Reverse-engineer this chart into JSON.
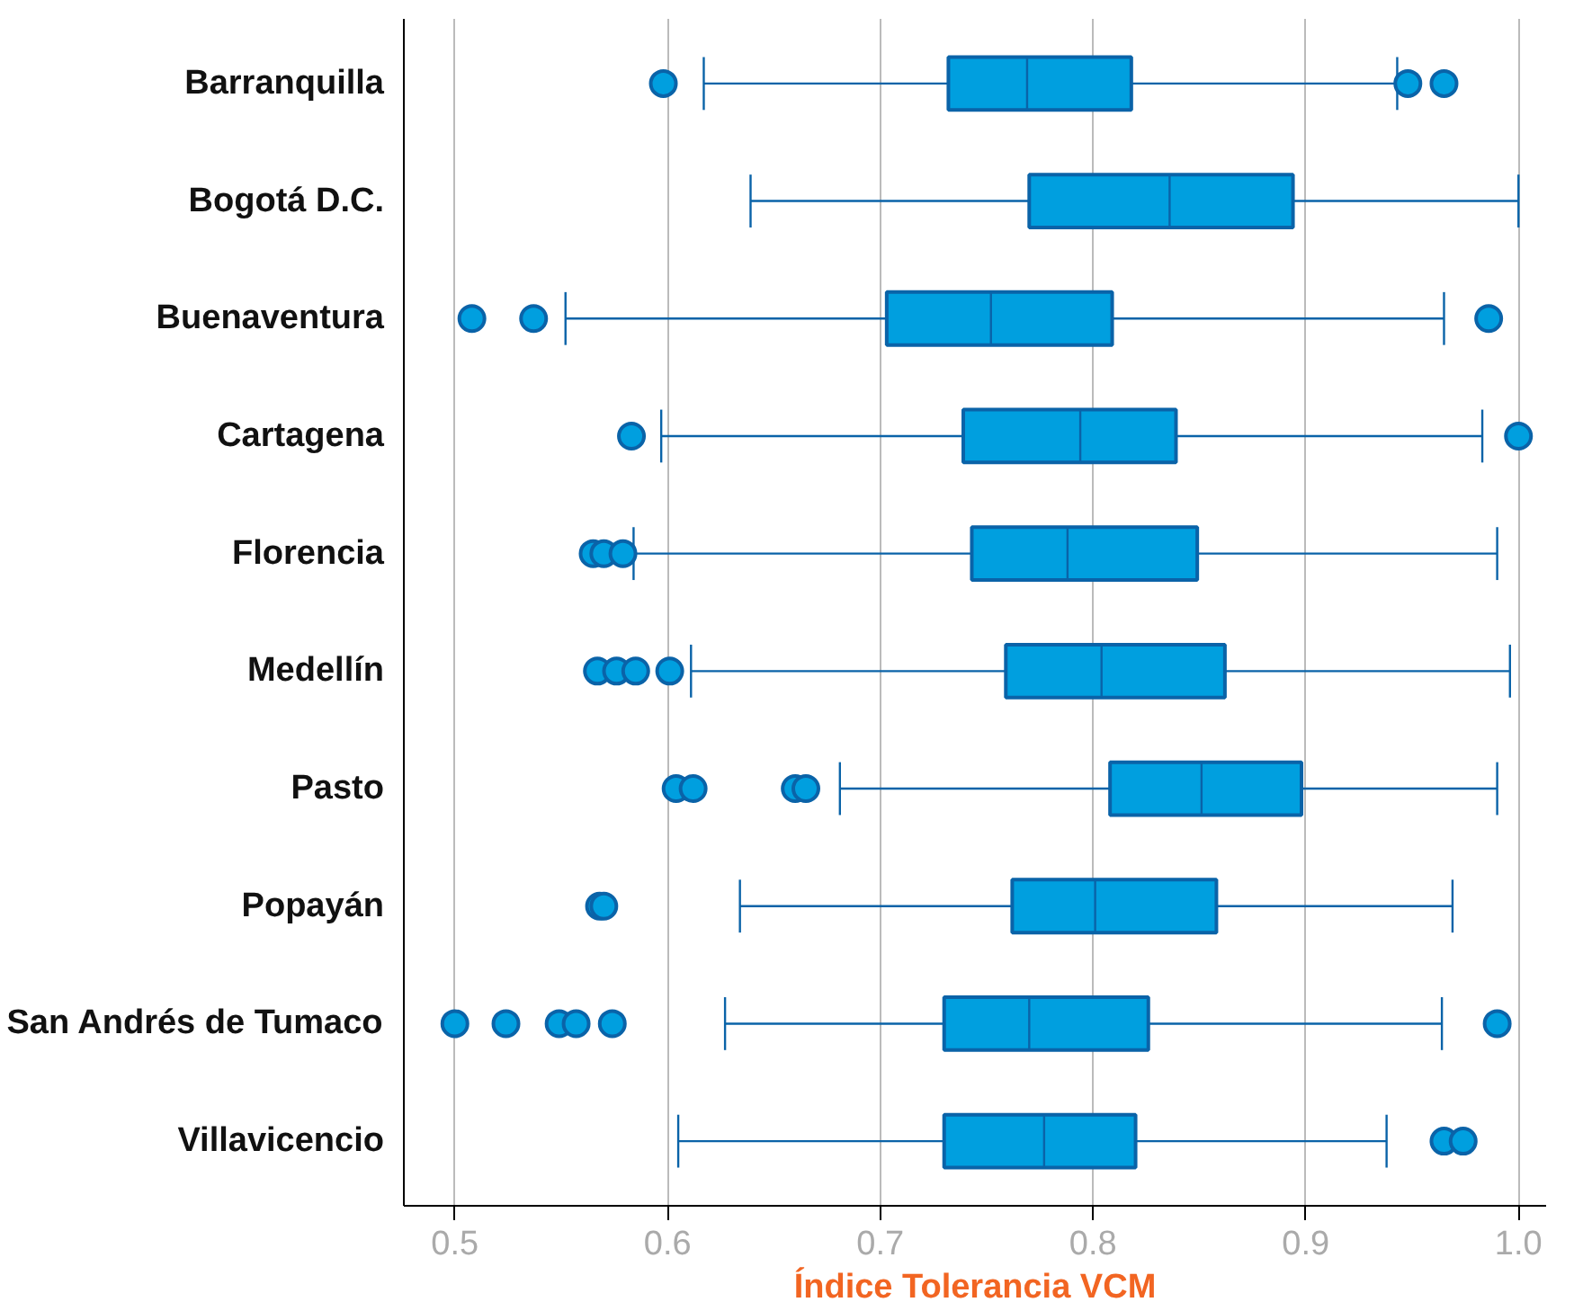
{
  "chart_data": {
    "type": "box",
    "orientation": "horizontal",
    "xlabel": "Índice Tolerancia VCM",
    "categories": [
      "Barranquilla",
      "Bogotá D.C.",
      "Buenaventura",
      "Cartagena",
      "Florencia",
      "Medellín",
      "Pasto",
      "Popayán",
      "San Andrés de Tumaco",
      "Villavicencio"
    ],
    "color": "#009fdf",
    "boxes": [
      {
        "low": 0.617,
        "q1": 0.732,
        "median": 0.769,
        "q3": 0.818,
        "high": 0.943,
        "outliers": [
          0.598,
          0.948,
          0.965
        ]
      },
      {
        "low": 0.639,
        "q1": 0.77,
        "median": 0.836,
        "q3": 0.894,
        "high": 1.0
      },
      {
        "low": 0.552,
        "q1": 0.703,
        "median": 0.752,
        "q3": 0.809,
        "high": 0.965,
        "outliers": [
          0.508,
          0.537,
          0.986
        ]
      },
      {
        "low": 0.597,
        "q1": 0.739,
        "median": 0.794,
        "q3": 0.839,
        "high": 0.983,
        "outliers": [
          0.583,
          1.0
        ]
      },
      {
        "low": 0.584,
        "q1": 0.743,
        "median": 0.788,
        "q3": 0.849,
        "high": 0.99,
        "outliers": [
          0.565,
          0.57,
          0.579
        ]
      },
      {
        "low": 0.611,
        "q1": 0.759,
        "median": 0.804,
        "q3": 0.862,
        "high": 0.996,
        "outliers": [
          0.567,
          0.576,
          0.585,
          0.601
        ]
      },
      {
        "low": 0.681,
        "q1": 0.808,
        "median": 0.851,
        "q3": 0.898,
        "high": 0.99,
        "outliers": [
          0.604,
          0.612,
          0.66,
          0.665
        ]
      },
      {
        "low": 0.634,
        "q1": 0.762,
        "median": 0.801,
        "q3": 0.858,
        "high": 0.969,
        "outliers": [
          0.568,
          0.57
        ]
      },
      {
        "low": 0.627,
        "q1": 0.73,
        "median": 0.77,
        "q3": 0.826,
        "high": 0.964,
        "outliers": [
          0.5,
          0.524,
          0.549,
          0.557,
          0.574,
          0.99
        ]
      },
      {
        "low": 0.605,
        "q1": 0.73,
        "median": 0.777,
        "q3": 0.82,
        "high": 0.938,
        "outliers": [
          0.965,
          0.974
        ]
      }
    ],
    "xlim": [
      0.476,
      1.013
    ],
    "xticks": [
      0.5,
      0.6,
      0.7,
      0.8,
      0.9,
      {
        "value": 1.0,
        "label": "1.0"
      }
    ],
    "grid": "x",
    "marker": "circle"
  }
}
